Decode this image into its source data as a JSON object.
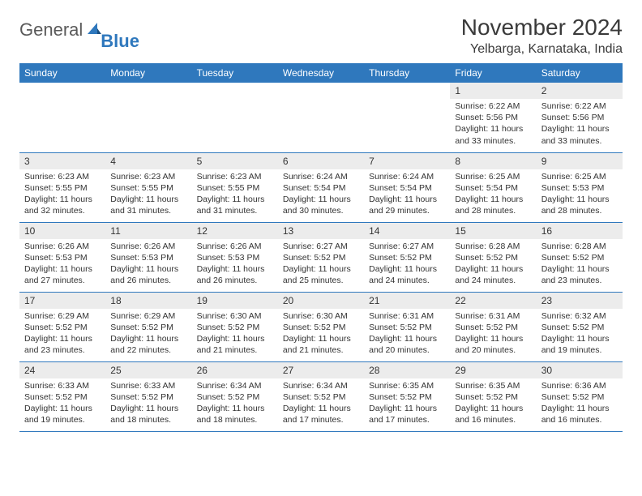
{
  "brand": {
    "text1": "General",
    "text2": "Blue"
  },
  "title": "November 2024",
  "location": "Yelbarga, Karnataka, India",
  "colors": {
    "header_bg": "#2f78bd",
    "header_fg": "#ffffff",
    "daynum_bg": "#ececec",
    "border": "#2f78bd",
    "text": "#333333",
    "logo_gray": "#5a5a5a",
    "logo_blue": "#2f78bd",
    "page_bg": "#ffffff"
  },
  "typography": {
    "title_fontsize": 28,
    "location_fontsize": 16,
    "header_fontsize": 12,
    "daynum_fontsize": 12,
    "body_fontsize": 10.5
  },
  "weekdays": [
    "Sunday",
    "Monday",
    "Tuesday",
    "Wednesday",
    "Thursday",
    "Friday",
    "Saturday"
  ],
  "first_weekday_index": 5,
  "days": [
    {
      "n": 1,
      "sunrise": "6:22 AM",
      "sunset": "5:56 PM",
      "daylight": "11 hours and 33 minutes."
    },
    {
      "n": 2,
      "sunrise": "6:22 AM",
      "sunset": "5:56 PM",
      "daylight": "11 hours and 33 minutes."
    },
    {
      "n": 3,
      "sunrise": "6:23 AM",
      "sunset": "5:55 PM",
      "daylight": "11 hours and 32 minutes."
    },
    {
      "n": 4,
      "sunrise": "6:23 AM",
      "sunset": "5:55 PM",
      "daylight": "11 hours and 31 minutes."
    },
    {
      "n": 5,
      "sunrise": "6:23 AM",
      "sunset": "5:55 PM",
      "daylight": "11 hours and 31 minutes."
    },
    {
      "n": 6,
      "sunrise": "6:24 AM",
      "sunset": "5:54 PM",
      "daylight": "11 hours and 30 minutes."
    },
    {
      "n": 7,
      "sunrise": "6:24 AM",
      "sunset": "5:54 PM",
      "daylight": "11 hours and 29 minutes."
    },
    {
      "n": 8,
      "sunrise": "6:25 AM",
      "sunset": "5:54 PM",
      "daylight": "11 hours and 28 minutes."
    },
    {
      "n": 9,
      "sunrise": "6:25 AM",
      "sunset": "5:53 PM",
      "daylight": "11 hours and 28 minutes."
    },
    {
      "n": 10,
      "sunrise": "6:26 AM",
      "sunset": "5:53 PM",
      "daylight": "11 hours and 27 minutes."
    },
    {
      "n": 11,
      "sunrise": "6:26 AM",
      "sunset": "5:53 PM",
      "daylight": "11 hours and 26 minutes."
    },
    {
      "n": 12,
      "sunrise": "6:26 AM",
      "sunset": "5:53 PM",
      "daylight": "11 hours and 26 minutes."
    },
    {
      "n": 13,
      "sunrise": "6:27 AM",
      "sunset": "5:52 PM",
      "daylight": "11 hours and 25 minutes."
    },
    {
      "n": 14,
      "sunrise": "6:27 AM",
      "sunset": "5:52 PM",
      "daylight": "11 hours and 24 minutes."
    },
    {
      "n": 15,
      "sunrise": "6:28 AM",
      "sunset": "5:52 PM",
      "daylight": "11 hours and 24 minutes."
    },
    {
      "n": 16,
      "sunrise": "6:28 AM",
      "sunset": "5:52 PM",
      "daylight": "11 hours and 23 minutes."
    },
    {
      "n": 17,
      "sunrise": "6:29 AM",
      "sunset": "5:52 PM",
      "daylight": "11 hours and 23 minutes."
    },
    {
      "n": 18,
      "sunrise": "6:29 AM",
      "sunset": "5:52 PM",
      "daylight": "11 hours and 22 minutes."
    },
    {
      "n": 19,
      "sunrise": "6:30 AM",
      "sunset": "5:52 PM",
      "daylight": "11 hours and 21 minutes."
    },
    {
      "n": 20,
      "sunrise": "6:30 AM",
      "sunset": "5:52 PM",
      "daylight": "11 hours and 21 minutes."
    },
    {
      "n": 21,
      "sunrise": "6:31 AM",
      "sunset": "5:52 PM",
      "daylight": "11 hours and 20 minutes."
    },
    {
      "n": 22,
      "sunrise": "6:31 AM",
      "sunset": "5:52 PM",
      "daylight": "11 hours and 20 minutes."
    },
    {
      "n": 23,
      "sunrise": "6:32 AM",
      "sunset": "5:52 PM",
      "daylight": "11 hours and 19 minutes."
    },
    {
      "n": 24,
      "sunrise": "6:33 AM",
      "sunset": "5:52 PM",
      "daylight": "11 hours and 19 minutes."
    },
    {
      "n": 25,
      "sunrise": "6:33 AM",
      "sunset": "5:52 PM",
      "daylight": "11 hours and 18 minutes."
    },
    {
      "n": 26,
      "sunrise": "6:34 AM",
      "sunset": "5:52 PM",
      "daylight": "11 hours and 18 minutes."
    },
    {
      "n": 27,
      "sunrise": "6:34 AM",
      "sunset": "5:52 PM",
      "daylight": "11 hours and 17 minutes."
    },
    {
      "n": 28,
      "sunrise": "6:35 AM",
      "sunset": "5:52 PM",
      "daylight": "11 hours and 17 minutes."
    },
    {
      "n": 29,
      "sunrise": "6:35 AM",
      "sunset": "5:52 PM",
      "daylight": "11 hours and 16 minutes."
    },
    {
      "n": 30,
      "sunrise": "6:36 AM",
      "sunset": "5:52 PM",
      "daylight": "11 hours and 16 minutes."
    }
  ],
  "labels": {
    "sunrise": "Sunrise:",
    "sunset": "Sunset:",
    "daylight": "Daylight:"
  }
}
